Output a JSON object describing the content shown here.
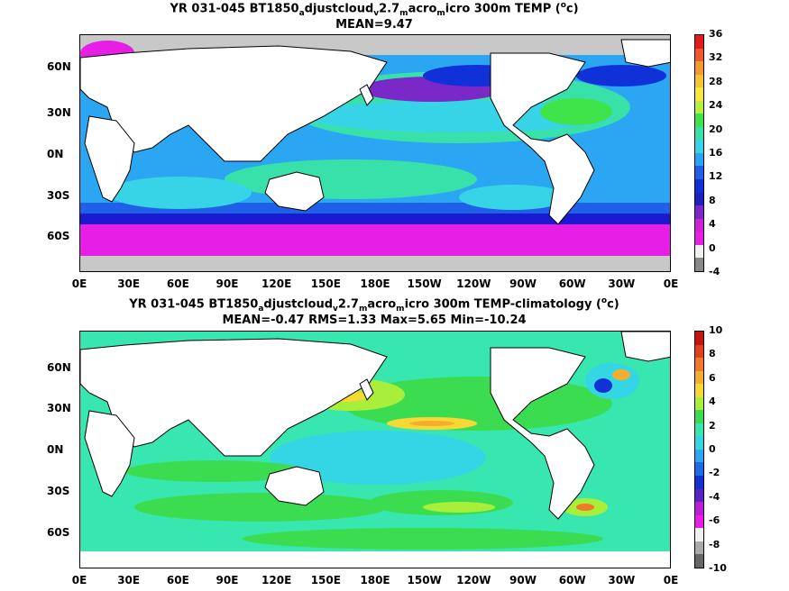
{
  "top": {
    "title_pre": "YR 031-045 BT1850",
    "title_sub1": "a",
    "title_mid1": "djustcloud",
    "title_sub2": "v",
    "title_mid2": "2.7",
    "title_sub3": "m",
    "title_mid3": "acro",
    "title_sub4": "m",
    "title_post": "icro 300m TEMP (",
    "title_sup": "o",
    "title_end": "c)",
    "subtitle": "MEAN=9.47",
    "colorbar_labels": [
      "36",
      "32",
      "28",
      "24",
      "20",
      "16",
      "12",
      "8",
      "4",
      "0",
      "-4"
    ],
    "colorbar_colors": [
      "#e41a1c",
      "#f05a2a",
      "#f39b2c",
      "#f6c433",
      "#f5e83a",
      "#b6f23c",
      "#3fe34a",
      "#38e1a9",
      "#37d4e8",
      "#28a5f5",
      "#2060e8",
      "#1030d8",
      "#2020c0",
      "#7a28c8",
      "#d020d8",
      "#e61ee6",
      "#f0f0f0",
      "#888888"
    ],
    "lat_labels": [
      "60N",
      "30N",
      "0N",
      "30S",
      "60S"
    ],
    "lon_labels": [
      "0E",
      "30E",
      "60E",
      "90E",
      "120E",
      "150E",
      "180E",
      "150W",
      "120W",
      "90W",
      "60W",
      "30W",
      "0E"
    ]
  },
  "bottom": {
    "title_pre": "YR 031-045 BT1850",
    "title_sub1": "a",
    "title_mid1": "djustcloud",
    "title_sub2": "v",
    "title_mid2": "2.7",
    "title_sub3": "m",
    "title_mid3": "acro",
    "title_sub4": "m",
    "title_post": "icro 300m TEMP-climatology (",
    "title_sup": "o",
    "title_end": "c)",
    "subtitle": "MEAN=-0.47   RMS=1.33   Max=5.65   Min=-10.24",
    "colorbar_labels": [
      "10",
      "8",
      "6",
      "4",
      "2",
      "0",
      "-2",
      "-4",
      "-6",
      "-8",
      "-10"
    ],
    "colorbar_colors": [
      "#c41414",
      "#e4401c",
      "#f07a2a",
      "#f5ad2e",
      "#f8d832",
      "#a8ee3a",
      "#3cdc50",
      "#38e6b0",
      "#34d6e6",
      "#2aa8f2",
      "#1e6ae8",
      "#1232d4",
      "#5a22c4",
      "#c01cd6",
      "#e81ee8",
      "#f0f0f0",
      "#aaaaaa",
      "#666666"
    ],
    "lat_labels": [
      "60N",
      "30N",
      "0N",
      "30S",
      "60S"
    ],
    "lon_labels": [
      "0E",
      "30E",
      "60E",
      "90E",
      "120E",
      "150E",
      "180E",
      "150W",
      "120W",
      "90W",
      "60W",
      "30W",
      "0E"
    ]
  }
}
